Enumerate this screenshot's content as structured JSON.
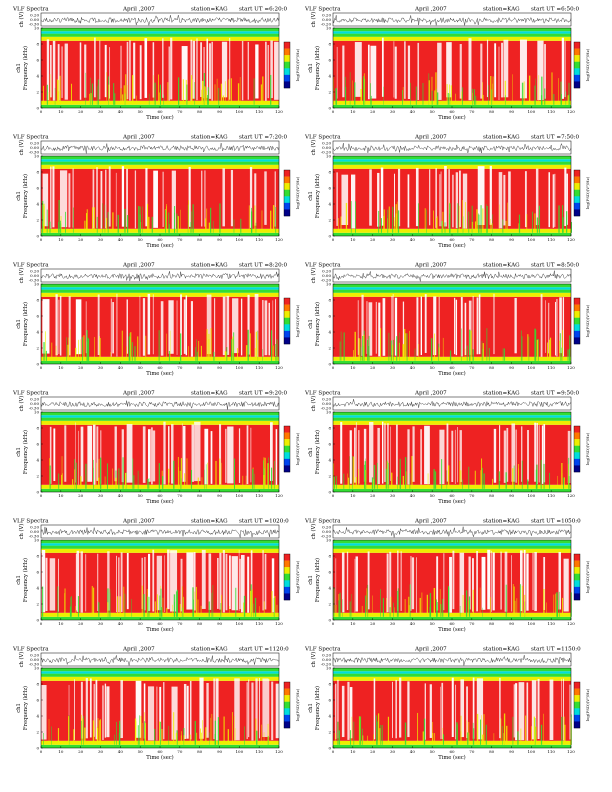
{
  "figure": {
    "common": {
      "title_prefix": "VLF Spectra",
      "date": "April ,2007",
      "station": "station=KAG",
      "start_prefix": "start  UT =",
      "wave_ylabel": "ch (V)",
      "channel_label": "ch1",
      "freq_ylabel": "Frequency  (kHz)",
      "xlabel": "Time  (sec)",
      "colorbar_label": "log(PSD)(V²/Hz)"
    },
    "colors": {
      "red": "#ee2222",
      "yellow": "#eeee00",
      "green": "#33dd33",
      "cyan": "#00dddd",
      "blue": "#0044ee",
      "navy": "#000088",
      "white": "#ffffff",
      "line": "#000000"
    }
  },
  "chart_data": [
    {
      "type": "heatmap",
      "start_time": "6:20:0",
      "xlim": [
        0,
        120
      ],
      "x_ticks": [
        0,
        10,
        20,
        30,
        40,
        50,
        60,
        70,
        80,
        90,
        100,
        110,
        120
      ],
      "ylim": [
        0,
        10
      ],
      "y_ticks": [
        0,
        2,
        4,
        6,
        8,
        10
      ],
      "wave_ticks": [
        "0.20",
        "0.00",
        "-0.30"
      ]
    },
    {
      "type": "heatmap",
      "start_time": "6:50:0",
      "xlim": [
        0,
        120
      ],
      "x_ticks": [
        0,
        10,
        20,
        30,
        40,
        50,
        60,
        70,
        80,
        90,
        100,
        110,
        120
      ],
      "ylim": [
        0,
        10
      ],
      "y_ticks": [
        0,
        2,
        4,
        6,
        8,
        10
      ],
      "wave_ticks": [
        "0.20",
        "0.00",
        "-0.20"
      ]
    },
    {
      "type": "heatmap",
      "start_time": "7:20:0",
      "xlim": [
        0,
        120
      ],
      "x_ticks": [
        0,
        10,
        20,
        30,
        40,
        50,
        60,
        70,
        80,
        90,
        100,
        110,
        120
      ],
      "ylim": [
        0,
        10
      ],
      "y_ticks": [
        0,
        2,
        4,
        6,
        8,
        10
      ],
      "wave_ticks": [
        "0.20",
        "0.00",
        "-0.30"
      ]
    },
    {
      "type": "heatmap",
      "start_time": "7:50:0",
      "xlim": [
        0,
        120
      ],
      "x_ticks": [
        0,
        10,
        20,
        30,
        40,
        50,
        60,
        70,
        80,
        90,
        100,
        110,
        120
      ],
      "ylim": [
        0,
        10
      ],
      "y_ticks": [
        0,
        2,
        4,
        6,
        8,
        10
      ],
      "wave_ticks": [
        "0.20",
        "0.00",
        "-0.20"
      ]
    },
    {
      "type": "heatmap",
      "start_time": "8:20:0",
      "xlim": [
        0,
        120
      ],
      "x_ticks": [
        0,
        10,
        20,
        30,
        40,
        50,
        60,
        70,
        80,
        90,
        100,
        110,
        120
      ],
      "ylim": [
        0,
        10
      ],
      "y_ticks": [
        0,
        2,
        4,
        6,
        8,
        10
      ],
      "wave_ticks": [
        "0.20",
        "0.00",
        "-0.30"
      ]
    },
    {
      "type": "heatmap",
      "start_time": "8:50:0",
      "xlim": [
        0,
        120
      ],
      "x_ticks": [
        0,
        10,
        20,
        30,
        40,
        50,
        60,
        70,
        80,
        90,
        100,
        110,
        120
      ],
      "ylim": [
        0,
        10
      ],
      "y_ticks": [
        0,
        2,
        4,
        6,
        8,
        10
      ],
      "wave_ticks": [
        "0.20",
        "0.00",
        "-0.20"
      ]
    },
    {
      "type": "heatmap",
      "start_time": "9:20:0",
      "xlim": [
        0,
        120
      ],
      "x_ticks": [
        0,
        10,
        20,
        30,
        40,
        50,
        60,
        70,
        80,
        90,
        100,
        110,
        120
      ],
      "ylim": [
        0,
        10
      ],
      "y_ticks": [
        0,
        2,
        4,
        6,
        8,
        10
      ],
      "wave_ticks": [
        "0.20",
        "0.00",
        "-0.30"
      ]
    },
    {
      "type": "heatmap",
      "start_time": "9:50:0",
      "xlim": [
        0,
        120
      ],
      "x_ticks": [
        0,
        10,
        20,
        30,
        40,
        50,
        60,
        70,
        80,
        90,
        100,
        110,
        120
      ],
      "ylim": [
        0,
        10
      ],
      "y_ticks": [
        0,
        2,
        4,
        6,
        8,
        10
      ],
      "wave_ticks": [
        "0.20",
        "0.00",
        "-0.20"
      ]
    },
    {
      "type": "heatmap",
      "start_time": "1020:0",
      "xlim": [
        0,
        120
      ],
      "x_ticks": [
        0,
        10,
        20,
        30,
        40,
        50,
        60,
        70,
        80,
        90,
        100,
        110,
        120
      ],
      "ylim": [
        0,
        10
      ],
      "y_ticks": [
        0,
        2,
        4,
        6,
        8,
        10
      ],
      "wave_ticks": [
        "0.20",
        "0.00",
        "-0.30"
      ]
    },
    {
      "type": "heatmap",
      "start_time": "1050:0",
      "xlim": [
        0,
        120
      ],
      "x_ticks": [
        0,
        10,
        20,
        30,
        40,
        50,
        60,
        70,
        80,
        90,
        100,
        110,
        120
      ],
      "ylim": [
        0,
        10
      ],
      "y_ticks": [
        0,
        2,
        4,
        6,
        8,
        10
      ],
      "wave_ticks": [
        "0.20",
        "0.00",
        "-0.20"
      ]
    },
    {
      "type": "heatmap",
      "start_time": "1120:0",
      "xlim": [
        0,
        120
      ],
      "x_ticks": [
        0,
        10,
        20,
        30,
        40,
        50,
        60,
        70,
        80,
        90,
        100,
        110,
        120
      ],
      "ylim": [
        0,
        10
      ],
      "y_ticks": [
        0,
        2,
        4,
        6,
        8,
        10
      ],
      "wave_ticks": [
        "0.20",
        "0.00",
        "-0.30"
      ]
    },
    {
      "type": "heatmap",
      "start_time": "1150:0",
      "xlim": [
        0,
        120
      ],
      "x_ticks": [
        0,
        10,
        20,
        30,
        40,
        50,
        60,
        70,
        80,
        90,
        100,
        110,
        120
      ],
      "ylim": [
        0,
        10
      ],
      "y_ticks": [
        0,
        2,
        4,
        6,
        8,
        10
      ],
      "wave_ticks": [
        "0.20",
        "0.00",
        "-0.20"
      ]
    }
  ]
}
